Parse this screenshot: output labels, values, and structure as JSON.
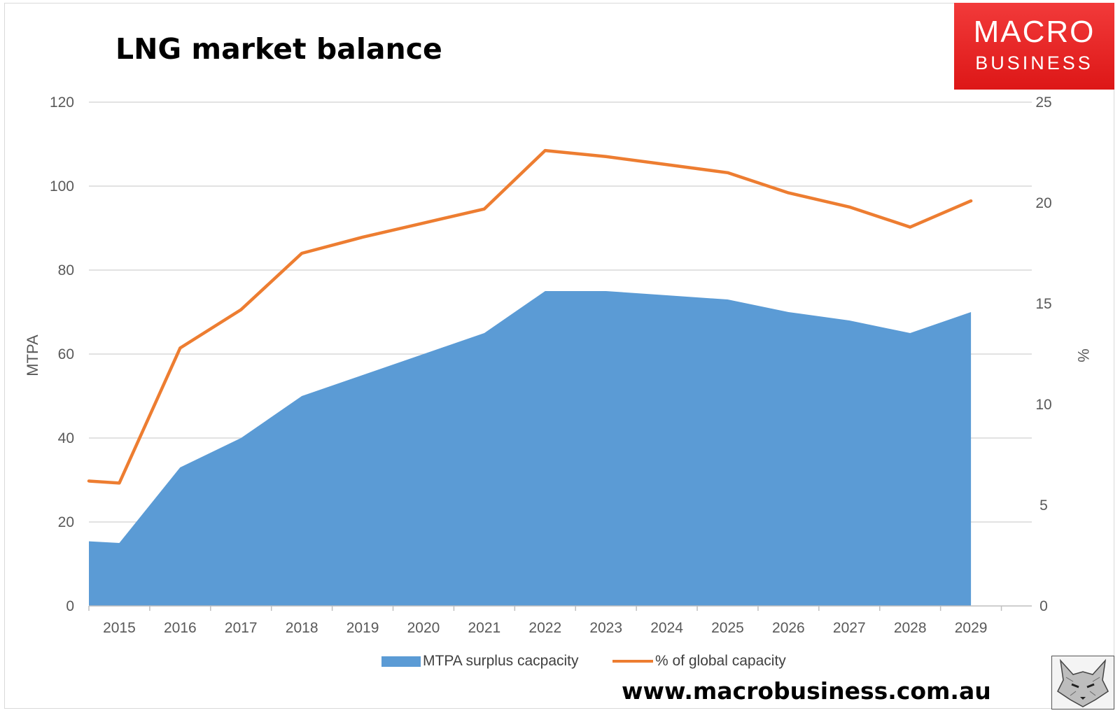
{
  "title": "LNG market balance",
  "logo": {
    "line1": "MACRO",
    "line2": "BUSINESS"
  },
  "website": "www.macrobusiness.com.au",
  "colors": {
    "area": "#5b9bd5",
    "line": "#ed7d31",
    "logo_bg": "#e52222",
    "grid": "#d9d9d9",
    "axis_text": "#595959"
  },
  "chart_data": {
    "type": "area",
    "title": "LNG market balance",
    "categories": [
      "2015",
      "2016",
      "2017",
      "2018",
      "2019",
      "2020",
      "2021",
      "2022",
      "2023",
      "2024",
      "2025",
      "2026",
      "2027",
      "2028",
      "2029"
    ],
    "x_start_value": 15.4,
    "series": [
      {
        "name": "MTPA surplus cacpacity",
        "type": "area",
        "axis": "left",
        "start_value": 15.4,
        "values": [
          15,
          33,
          40,
          50,
          55,
          60,
          65,
          75,
          75,
          74,
          73,
          70,
          68,
          65,
          70
        ]
      },
      {
        "name": "% of global capacity",
        "type": "line",
        "axis": "right",
        "start_value": 6.2,
        "values": [
          6.1,
          12.8,
          14.7,
          17.5,
          18.3,
          19,
          19.7,
          22.6,
          22.3,
          21.9,
          21.5,
          20.5,
          19.8,
          18.8,
          20.1
        ]
      }
    ],
    "ylabel": "MTPA",
    "y2label": "%",
    "ylim": [
      0,
      120
    ],
    "y2lim": [
      0,
      25
    ],
    "yticks": [
      "0",
      "20",
      "40",
      "60",
      "80",
      "100",
      "120"
    ],
    "y2ticks": [
      "0",
      "5",
      "10",
      "15",
      "20",
      "25"
    ],
    "grid": true,
    "legend": "bottom"
  }
}
